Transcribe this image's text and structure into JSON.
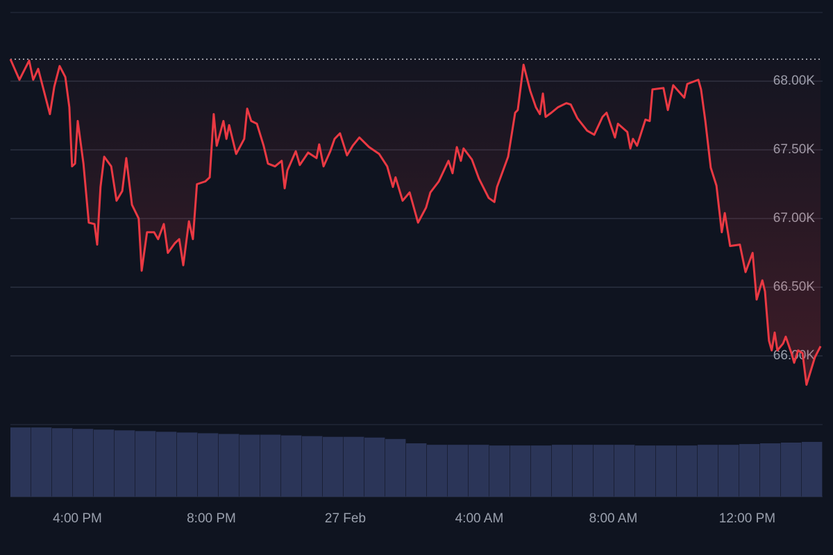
{
  "chart_data": {
    "type": "line",
    "color": "#ea3943",
    "grid": true,
    "baseline": 68160,
    "xlim": [
      14,
      38.25
    ],
    "xticks": [
      {
        "value": 16,
        "label": "4:00 PM"
      },
      {
        "value": 20,
        "label": "8:00 PM"
      },
      {
        "value": 24,
        "label": "27 Feb"
      },
      {
        "value": 28,
        "label": "4:00 AM"
      },
      {
        "value": 32,
        "label": "8:00 AM"
      },
      {
        "value": 36,
        "label": "12:00 PM"
      }
    ],
    "ylim": [
      65500,
      68500
    ],
    "yticks": [
      {
        "value": 66000,
        "label": "66.00K"
      },
      {
        "value": 66500,
        "label": "66.50K"
      },
      {
        "value": 67000,
        "label": "67.00K"
      },
      {
        "value": 67500,
        "label": "67.50K"
      },
      {
        "value": 68000,
        "label": "68.00K"
      }
    ],
    "x": [
      14.0,
      14.27,
      14.56,
      14.68,
      14.83,
      15.18,
      15.31,
      15.47,
      15.64,
      15.76,
      15.84,
      15.93,
      16.01,
      16.18,
      16.34,
      16.51,
      16.59,
      16.69,
      16.8,
      17.01,
      17.17,
      17.34,
      17.46,
      17.63,
      17.83,
      17.92,
      18.08,
      18.29,
      18.41,
      18.58,
      18.7,
      18.91,
      19.04,
      19.16,
      19.33,
      19.45,
      19.57,
      19.82,
      19.95,
      20.07,
      20.16,
      20.36,
      20.45,
      20.53,
      20.74,
      20.98,
      21.07,
      21.19,
      21.36,
      21.56,
      21.69,
      21.9,
      22.1,
      22.19,
      22.27,
      22.52,
      22.64,
      22.89,
      23.14,
      23.22,
      23.35,
      23.55,
      23.68,
      23.84,
      24.05,
      24.22,
      24.42,
      24.71,
      25.01,
      25.25,
      25.42,
      25.5,
      25.71,
      25.92,
      26.17,
      26.41,
      26.54,
      26.79,
      27.08,
      27.2,
      27.33,
      27.45,
      27.53,
      27.78,
      27.99,
      28.28,
      28.45,
      28.53,
      28.86,
      29.07,
      29.15,
      29.32,
      29.52,
      29.69,
      29.81,
      29.9,
      29.98,
      30.15,
      30.35,
      30.6,
      30.73,
      30.93,
      31.22,
      31.43,
      31.68,
      31.8,
      32.05,
      32.14,
      32.42,
      32.51,
      32.59,
      32.71,
      32.96,
      33.09,
      33.17,
      33.5,
      33.63,
      33.79,
      34.12,
      34.21,
      34.54,
      34.62,
      34.75,
      34.91,
      35.08,
      35.24,
      35.33,
      35.49,
      35.78,
      35.95,
      36.16,
      36.28,
      36.45,
      36.53,
      36.65,
      36.73,
      36.82,
      36.9,
      37.07,
      37.15,
      37.32,
      37.4,
      37.52,
      37.65,
      37.77,
      38.02,
      38.19
    ],
    "values": [
      68160,
      68010,
      68150,
      68010,
      68090,
      67760,
      67960,
      68110,
      68030,
      67810,
      67380,
      67400,
      67710,
      67400,
      66970,
      66960,
      66810,
      67230,
      67450,
      67380,
      67130,
      67200,
      67440,
      67100,
      67000,
      66620,
      66900,
      66900,
      66850,
      66960,
      66750,
      66820,
      66850,
      66660,
      66980,
      66850,
      67250,
      67270,
      67300,
      67760,
      67530,
      67710,
      67580,
      67680,
      67470,
      67580,
      67800,
      67710,
      67690,
      67530,
      67400,
      67380,
      67420,
      67220,
      67350,
      67490,
      67390,
      67480,
      67440,
      67540,
      67380,
      67490,
      67580,
      67620,
      67460,
      67530,
      67590,
      67520,
      67470,
      67380,
      67230,
      67300,
      67130,
      67190,
      66970,
      67080,
      67190,
      67270,
      67420,
      67330,
      67520,
      67420,
      67510,
      67430,
      67290,
      67150,
      67120,
      67230,
      67450,
      67770,
      67790,
      68120,
      67930,
      67810,
      67760,
      67910,
      67740,
      67770,
      67810,
      67840,
      67830,
      67730,
      67640,
      67610,
      67740,
      67770,
      67590,
      67690,
      67630,
      67510,
      67580,
      67530,
      67720,
      67710,
      67940,
      67950,
      67790,
      67970,
      67880,
      67980,
      68010,
      67940,
      67710,
      67370,
      67240,
      66900,
      67040,
      66800,
      66810,
      66610,
      66750,
      66410,
      66550,
      66470,
      66110,
      66040,
      66170,
      66040,
      66090,
      66140,
      66020,
      65950,
      66040,
      66020,
      65790,
      65990,
      66070
    ],
    "volume": {
      "type": "bar",
      "color": "#2b3558",
      "ylim": [
        0,
        100
      ],
      "values": [
        96,
        96,
        95,
        94,
        93,
        92,
        91,
        90,
        89,
        88,
        87,
        86,
        86,
        85,
        84,
        83,
        83,
        82,
        80,
        74,
        72,
        72,
        72,
        71,
        71,
        71,
        72,
        72,
        72,
        72,
        71,
        71,
        71,
        72,
        72,
        73,
        74,
        75,
        76
      ]
    }
  }
}
